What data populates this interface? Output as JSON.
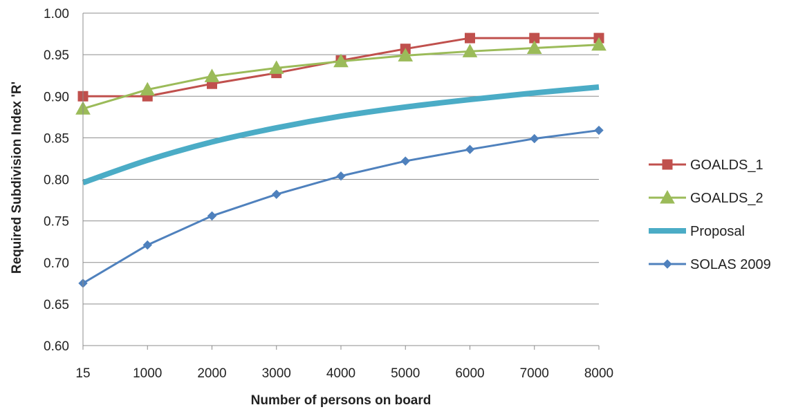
{
  "chart_data": {
    "type": "line",
    "title": "",
    "xlabel": "Number of persons on board",
    "ylabel": "Required Subdivision Index 'R'",
    "categories": [
      "15",
      "1000",
      "2000",
      "3000",
      "4000",
      "5000",
      "6000",
      "7000",
      "8000"
    ],
    "yticks": [
      "0.60",
      "0.65",
      "0.70",
      "0.75",
      "0.80",
      "0.85",
      "0.90",
      "0.95",
      "1.00"
    ],
    "ylim": [
      0.6,
      1.0
    ],
    "grid": "horizontal",
    "legend_position": "right",
    "series": [
      {
        "name": "GOALDS_1",
        "color": "#c0504d",
        "marker": "square",
        "values": [
          0.9,
          0.9,
          0.915,
          0.928,
          0.943,
          0.957,
          0.97,
          0.97,
          0.97
        ]
      },
      {
        "name": "GOALDS_2",
        "color": "#9bbb59",
        "marker": "triangle",
        "values": [
          0.885,
          0.908,
          0.924,
          0.934,
          0.942,
          0.949,
          0.954,
          0.958,
          0.962
        ]
      },
      {
        "name": "Proposal",
        "color": "#4bacc6",
        "marker": "none",
        "thick": true,
        "values": [
          0.796,
          0.823,
          0.845,
          0.862,
          0.876,
          0.887,
          0.896,
          0.904,
          0.911
        ]
      },
      {
        "name": "SOLAS 2009",
        "color": "#4f81bd",
        "marker": "diamond",
        "values": [
          0.675,
          0.721,
          0.756,
          0.782,
          0.804,
          0.822,
          0.836,
          0.849,
          0.859
        ]
      }
    ]
  }
}
